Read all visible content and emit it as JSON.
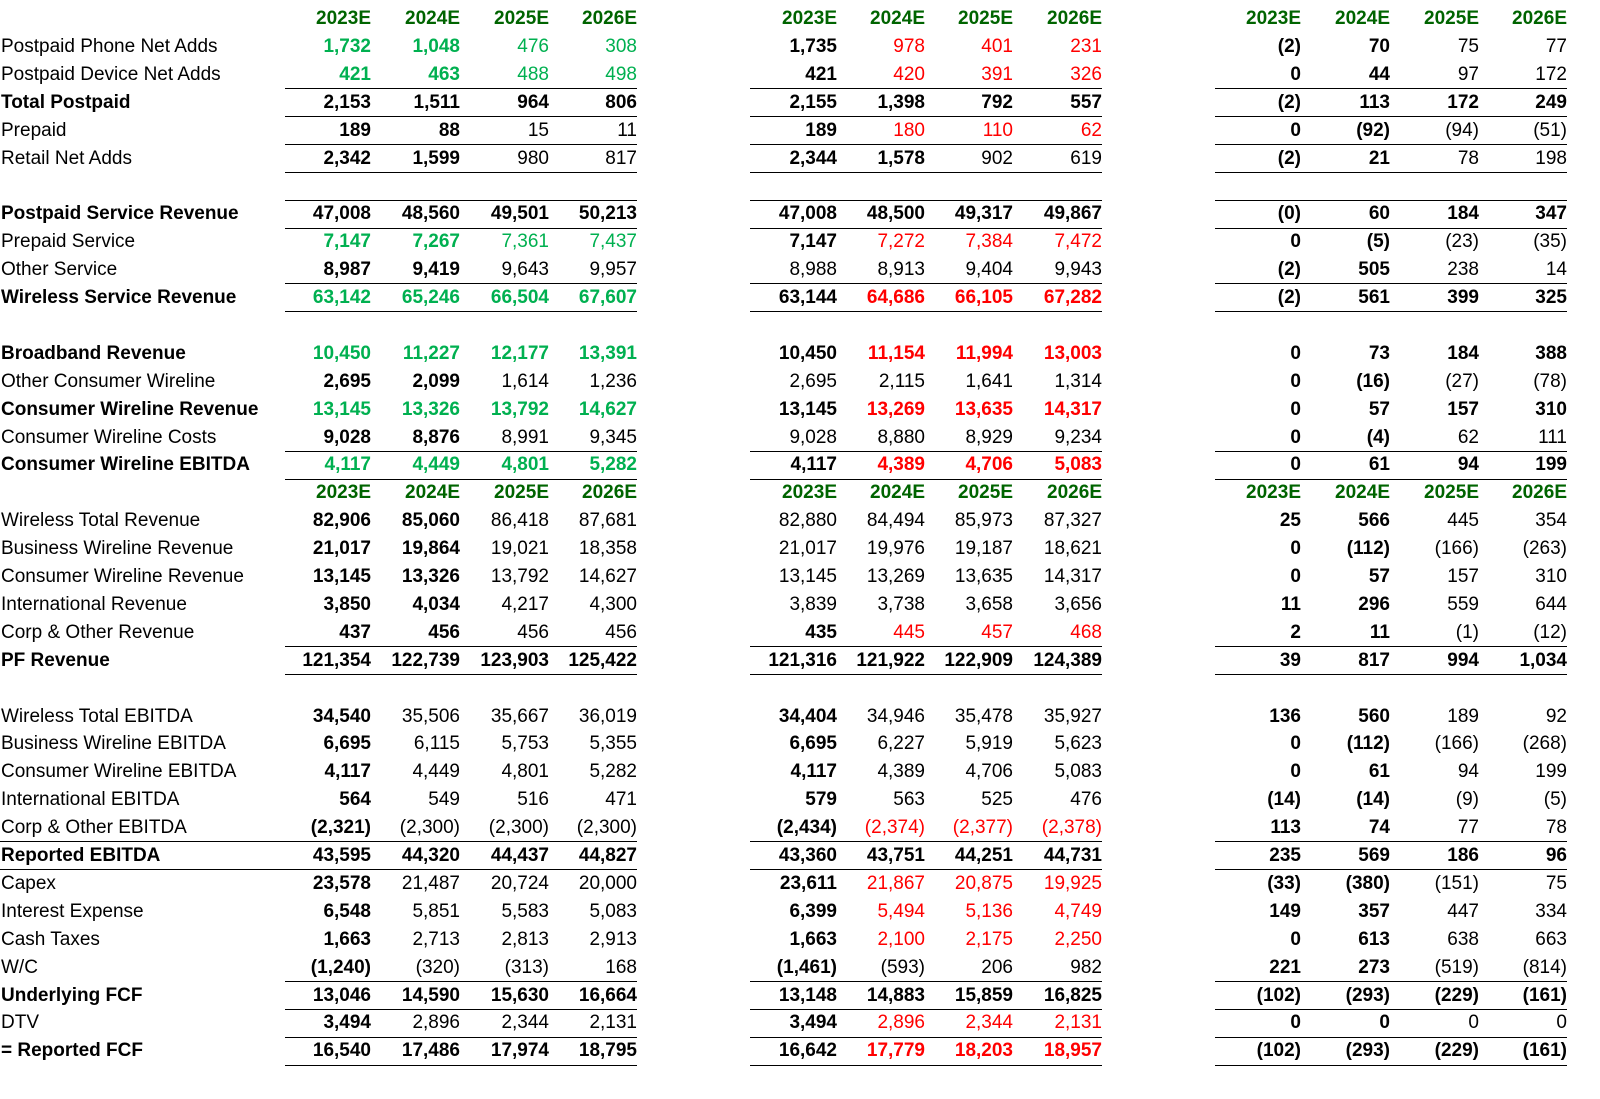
{
  "headers": [
    "2023E",
    "2024E",
    "2025E",
    "2026E"
  ],
  "section1_rows": [
    {
      "label": "Postpaid Phone Net Adds",
      "bold": false,
      "ul": false,
      "a": {
        "v": [
          "1,732",
          "1,048",
          "476",
          "308"
        ],
        "c": "green",
        "bold2": true
      },
      "b": {
        "v": [
          "1,735",
          "978",
          "401",
          "231"
        ],
        "c": "red"
      },
      "d": {
        "v": [
          "(2)",
          "70",
          "75",
          "77"
        ]
      }
    },
    {
      "label": "Postpaid Device Net Adds",
      "bold": false,
      "ul": true,
      "a": {
        "v": [
          "421",
          "463",
          "488",
          "498"
        ],
        "c": "green",
        "bold2": true
      },
      "b": {
        "v": [
          "421",
          "420",
          "391",
          "326"
        ],
        "c": "red"
      },
      "d": {
        "v": [
          "0",
          "44",
          "97",
          "172"
        ]
      }
    },
    {
      "label": "Total Postpaid",
      "bold": true,
      "ul": true,
      "a": {
        "v": [
          "2,153",
          "1,511",
          "964",
          "806"
        ]
      },
      "b": {
        "v": [
          "2,155",
          "1,398",
          "792",
          "557"
        ]
      },
      "d": {
        "v": [
          "(2)",
          "113",
          "172",
          "249"
        ]
      }
    },
    {
      "label": "Prepaid",
      "bold": false,
      "ul": true,
      "a": {
        "v": [
          "189",
          "88",
          "15",
          "11"
        ],
        "bold2": true
      },
      "b": {
        "v": [
          "189",
          "180",
          "110",
          "62"
        ],
        "c": "red"
      },
      "d": {
        "v": [
          "0",
          "(92)",
          "(94)",
          "(51)"
        ]
      }
    },
    {
      "label": "Retail Net Adds",
      "bold": false,
      "ul": true,
      "a": {
        "v": [
          "2,342",
          "1,599",
          "980",
          "817"
        ],
        "bold2": true
      },
      "b": {
        "v": [
          "2,344",
          "1,578",
          "902",
          "619"
        ],
        "bold2": true
      },
      "d": {
        "v": [
          "(2)",
          "21",
          "78",
          "198"
        ]
      }
    },
    {
      "label": "",
      "blank": true,
      "ul": true
    },
    {
      "label": "Postpaid Service Revenue",
      "bold": true,
      "ul": true,
      "a": {
        "v": [
          "47,008",
          "48,560",
          "49,501",
          "50,213"
        ]
      },
      "b": {
        "v": [
          "47,008",
          "48,500",
          "49,317",
          "49,867"
        ]
      },
      "d": {
        "v": [
          "(0)",
          "60",
          "184",
          "347"
        ]
      }
    },
    {
      "label": "Prepaid Service",
      "bold": false,
      "ul": false,
      "a": {
        "v": [
          "7,147",
          "7,267",
          "7,361",
          "7,437"
        ],
        "c": "green",
        "bold2": true
      },
      "b": {
        "v": [
          "7,147",
          "7,272",
          "7,384",
          "7,472"
        ],
        "c": "red"
      },
      "d": {
        "v": [
          "0",
          "(5)",
          "(23)",
          "(35)"
        ]
      }
    },
    {
      "label": "Other Service",
      "bold": false,
      "ul": true,
      "a": {
        "v": [
          "8,987",
          "9,419",
          "9,643",
          "9,957"
        ],
        "bold2": true
      },
      "b": {
        "v": [
          "8,988",
          "8,913",
          "9,404",
          "9,943"
        ]
      },
      "d": {
        "v": [
          "(2)",
          "505",
          "238",
          "14"
        ]
      }
    },
    {
      "label": "Wireless Service Revenue",
      "bold": true,
      "ul": true,
      "a": {
        "v": [
          "63,142",
          "65,246",
          "66,504",
          "67,607"
        ],
        "c": "green",
        "allnormal": false,
        "weight": "normal"
      },
      "b": {
        "v": [
          "63,144",
          "64,686",
          "66,105",
          "67,282"
        ],
        "c": "red"
      },
      "d": {
        "v": [
          "(2)",
          "561",
          "399",
          "325"
        ]
      }
    },
    {
      "label": "",
      "blank": true,
      "ul": false
    },
    {
      "label": "Broadband Revenue",
      "bold": true,
      "ul": false,
      "a": {
        "v": [
          "10,450",
          "11,227",
          "12,177",
          "13,391"
        ],
        "c": "green",
        "weight": "normal"
      },
      "b": {
        "v": [
          "10,450",
          "11,154",
          "11,994",
          "13,003"
        ],
        "c": "red"
      },
      "d": {
        "v": [
          "0",
          "73",
          "184",
          "388"
        ]
      }
    },
    {
      "label": "Other Consumer Wireline",
      "bold": false,
      "ul": false,
      "a": {
        "v": [
          "2,695",
          "2,099",
          "1,614",
          "1,236"
        ],
        "bold2": true
      },
      "b": {
        "v": [
          "2,695",
          "2,115",
          "1,641",
          "1,314"
        ]
      },
      "d": {
        "v": [
          "0",
          "(16)",
          "(27)",
          "(78)"
        ]
      }
    },
    {
      "label": "Consumer Wireline Revenue",
      "bold": true,
      "ul": false,
      "a": {
        "v": [
          "13,145",
          "13,326",
          "13,792",
          "14,627"
        ],
        "c": "green",
        "weight": "normal"
      },
      "b": {
        "v": [
          "13,145",
          "13,269",
          "13,635",
          "14,317"
        ],
        "c": "red"
      },
      "d": {
        "v": [
          "0",
          "57",
          "157",
          "310"
        ]
      }
    },
    {
      "label": "Consumer Wireline Costs",
      "bold": false,
      "ul": true,
      "a": {
        "v": [
          "9,028",
          "8,876",
          "8,991",
          "9,345"
        ],
        "bold2": true
      },
      "b": {
        "v": [
          "9,028",
          "8,880",
          "8,929",
          "9,234"
        ]
      },
      "d": {
        "v": [
          "0",
          "(4)",
          "62",
          "111"
        ]
      }
    },
    {
      "label": "Consumer Wireline EBITDA",
      "bold": true,
      "ul": true,
      "a": {
        "v": [
          "4,117",
          "4,449",
          "4,801",
          "5,282"
        ],
        "c": "green",
        "weight": "normal"
      },
      "b": {
        "v": [
          "4,117",
          "4,389",
          "4,706",
          "5,083"
        ],
        "c": "red"
      },
      "d": {
        "v": [
          "0",
          "61",
          "94",
          "199"
        ]
      }
    }
  ],
  "section2_rows": [
    {
      "label": "Wireless Total Revenue",
      "bold": false,
      "ul": false,
      "a": {
        "v": [
          "82,906",
          "85,060",
          "86,418",
          "87,681"
        ],
        "bold2": true
      },
      "b": {
        "v": [
          "82,880",
          "84,494",
          "85,973",
          "87,327"
        ]
      },
      "d": {
        "v": [
          "25",
          "566",
          "445",
          "354"
        ]
      }
    },
    {
      "label": "Business Wireline Revenue",
      "bold": false,
      "ul": false,
      "a": {
        "v": [
          "21,017",
          "19,864",
          "19,021",
          "18,358"
        ],
        "bold2": true
      },
      "b": {
        "v": [
          "21,017",
          "19,976",
          "19,187",
          "18,621"
        ]
      },
      "d": {
        "v": [
          "0",
          "(112)",
          "(166)",
          "(263)"
        ]
      }
    },
    {
      "label": "Consumer Wireline Revenue",
      "bold": false,
      "ul": false,
      "a": {
        "v": [
          "13,145",
          "13,326",
          "13,792",
          "14,627"
        ],
        "bold2": true
      },
      "b": {
        "v": [
          "13,145",
          "13,269",
          "13,635",
          "14,317"
        ]
      },
      "d": {
        "v": [
          "0",
          "57",
          "157",
          "310"
        ]
      }
    },
    {
      "label": "International Revenue",
      "bold": false,
      "ul": false,
      "a": {
        "v": [
          "3,850",
          "4,034",
          "4,217",
          "4,300"
        ],
        "bold2": true
      },
      "b": {
        "v": [
          "3,839",
          "3,738",
          "3,658",
          "3,656"
        ]
      },
      "d": {
        "v": [
          "11",
          "296",
          "559",
          "644"
        ]
      }
    },
    {
      "label": "Corp & Other Revenue",
      "bold": false,
      "ul": true,
      "a": {
        "v": [
          "437",
          "456",
          "456",
          "456"
        ],
        "bold2": true
      },
      "b": {
        "v": [
          "435",
          "445",
          "457",
          "468"
        ],
        "c": "red"
      },
      "d": {
        "v": [
          "2",
          "11",
          "(1)",
          "(12)"
        ]
      }
    },
    {
      "label": "PF Revenue",
      "bold": true,
      "ul": true,
      "a": {
        "v": [
          "121,354",
          "122,739",
          "123,903",
          "125,422"
        ]
      },
      "b": {
        "v": [
          "121,316",
          "121,922",
          "122,909",
          "124,389"
        ]
      },
      "d": {
        "v": [
          "39",
          "817",
          "994",
          "1,034"
        ]
      }
    },
    {
      "label": "",
      "blank": true,
      "ul": false
    },
    {
      "label": "Wireless Total EBITDA",
      "bold": false,
      "ul": false,
      "a": {
        "v": [
          "34,540",
          "35,506",
          "35,667",
          "36,019"
        ],
        "bold1": true
      },
      "b": {
        "v": [
          "34,404",
          "34,946",
          "35,478",
          "35,927"
        ],
        "bold1": true
      },
      "d": {
        "v": [
          "136",
          "560",
          "189",
          "92"
        ],
        "bold2": true
      }
    },
    {
      "label": "Business Wireline EBITDA",
      "bold": false,
      "ul": false,
      "a": {
        "v": [
          "6,695",
          "6,115",
          "5,753",
          "5,355"
        ],
        "bold1": true
      },
      "b": {
        "v": [
          "6,695",
          "6,227",
          "5,919",
          "5,623"
        ],
        "bold1": true
      },
      "d": {
        "v": [
          "0",
          "(112)",
          "(166)",
          "(268)"
        ],
        "bold2": true
      }
    },
    {
      "label": "Consumer Wireline EBITDA",
      "bold": false,
      "ul": false,
      "a": {
        "v": [
          "4,117",
          "4,449",
          "4,801",
          "5,282"
        ],
        "bold1": true
      },
      "b": {
        "v": [
          "4,117",
          "4,389",
          "4,706",
          "5,083"
        ],
        "bold1": true
      },
      "d": {
        "v": [
          "0",
          "61",
          "94",
          "199"
        ],
        "bold2": true
      }
    },
    {
      "label": "International EBITDA",
      "bold": false,
      "ul": false,
      "a": {
        "v": [
          "564",
          "549",
          "516",
          "471"
        ],
        "bold1": true
      },
      "b": {
        "v": [
          "579",
          "563",
          "525",
          "476"
        ],
        "bold1": true
      },
      "d": {
        "v": [
          "(14)",
          "(14)",
          "(9)",
          "(5)"
        ],
        "bold2": true
      }
    },
    {
      "label": "Corp & Other EBITDA",
      "bold": false,
      "ul": true,
      "ulfull": true,
      "a": {
        "v": [
          "(2,321)",
          "(2,300)",
          "(2,300)",
          "(2,300)"
        ],
        "bold1": true
      },
      "b": {
        "v": [
          "(2,434)",
          "(2,374)",
          "(2,377)",
          "(2,378)"
        ],
        "bold1": true,
        "c": "red"
      },
      "d": {
        "v": [
          "113",
          "74",
          "77",
          "78"
        ],
        "bold2": true
      }
    },
    {
      "label": "Reported EBITDA",
      "bold": true,
      "ul": true,
      "ulfull": true,
      "a": {
        "v": [
          "43,595",
          "44,320",
          "44,437",
          "44,827"
        ]
      },
      "b": {
        "v": [
          "43,360",
          "43,751",
          "44,251",
          "44,731"
        ]
      },
      "d": {
        "v": [
          "235",
          "569",
          "186",
          "96"
        ]
      }
    },
    {
      "label": "Capex",
      "bold": false,
      "ul": false,
      "a": {
        "v": [
          "23,578",
          "21,487",
          "20,724",
          "20,000"
        ],
        "bold1": true
      },
      "b": {
        "v": [
          "23,611",
          "21,867",
          "20,875",
          "19,925"
        ],
        "bold1": true,
        "c": "red"
      },
      "d": {
        "v": [
          "(33)",
          "(380)",
          "(151)",
          "75"
        ],
        "bold2": true
      }
    },
    {
      "label": "Interest Expense",
      "bold": false,
      "ul": false,
      "a": {
        "v": [
          "6,548",
          "5,851",
          "5,583",
          "5,083"
        ],
        "bold1": true
      },
      "b": {
        "v": [
          "6,399",
          "5,494",
          "5,136",
          "4,749"
        ],
        "bold1": true,
        "c": "red"
      },
      "d": {
        "v": [
          "149",
          "357",
          "447",
          "334"
        ],
        "bold2": true
      }
    },
    {
      "label": "Cash Taxes",
      "bold": false,
      "ul": false,
      "a": {
        "v": [
          "1,663",
          "2,713",
          "2,813",
          "2,913"
        ],
        "bold1": true
      },
      "b": {
        "v": [
          "1,663",
          "2,100",
          "2,175",
          "2,250"
        ],
        "bold1": true,
        "c": "red"
      },
      "d": {
        "v": [
          "0",
          "613",
          "638",
          "663"
        ],
        "bold2": true
      }
    },
    {
      "label": "W/C",
      "bold": false,
      "ul": true,
      "a": {
        "v": [
          "(1,240)",
          "(320)",
          "(313)",
          "168"
        ],
        "bold1": true
      },
      "b": {
        "v": [
          "(1,461)",
          "(593)",
          "206",
          "982"
        ],
        "bold1": true
      },
      "d": {
        "v": [
          "221",
          "273",
          "(519)",
          "(814)"
        ],
        "bold2": true
      }
    },
    {
      "label": "Underlying FCF",
      "bold": true,
      "ul": true,
      "a": {
        "v": [
          "13,046",
          "14,590",
          "15,630",
          "16,664"
        ]
      },
      "b": {
        "v": [
          "13,148",
          "14,883",
          "15,859",
          "16,825"
        ]
      },
      "d": {
        "v": [
          "(102)",
          "(293)",
          "(229)",
          "(161)"
        ]
      }
    },
    {
      "label": "DTV",
      "bold": false,
      "ul": true,
      "a": {
        "v": [
          "3,494",
          "2,896",
          "2,344",
          "2,131"
        ],
        "bold1": true
      },
      "b": {
        "v": [
          "3,494",
          "2,896",
          "2,344",
          "2,131"
        ],
        "bold1": true,
        "c": "red"
      },
      "d": {
        "v": [
          "0",
          "0",
          "0",
          "0"
        ],
        "bold2": true
      }
    },
    {
      "label": "= Reported FCF",
      "bold": true,
      "ul": true,
      "a": {
        "v": [
          "16,540",
          "17,486",
          "17,974",
          "18,795"
        ]
      },
      "b": {
        "v": [
          "16,642",
          "17,779",
          "18,203",
          "18,957"
        ],
        "c": "red",
        "bold1plain": true
      },
      "d": {
        "v": [
          "(102)",
          "(293)",
          "(229)",
          "(161)"
        ]
      }
    }
  ]
}
